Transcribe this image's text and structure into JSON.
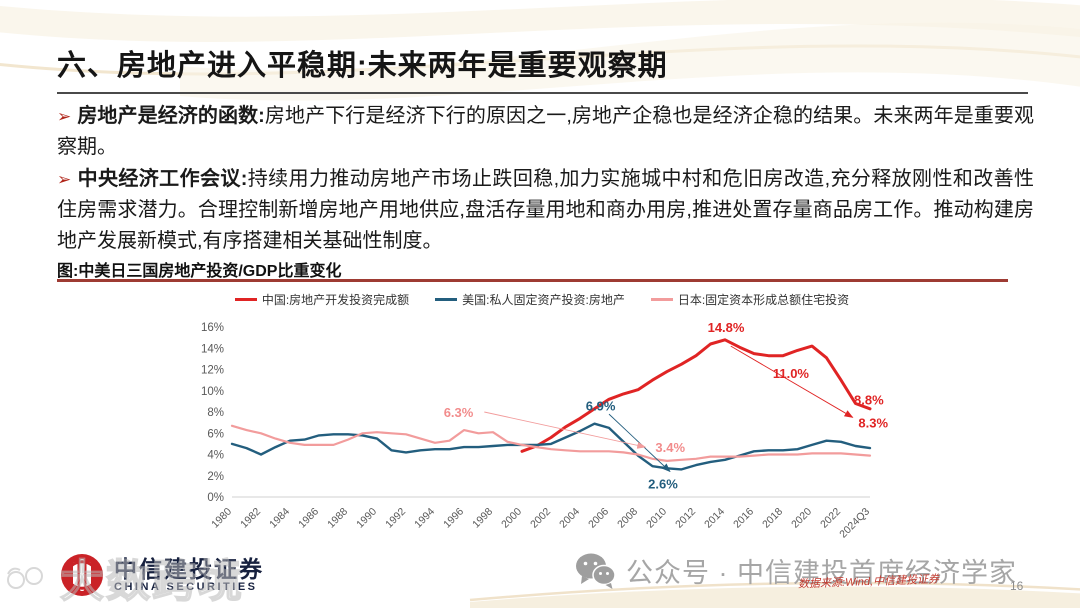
{
  "slide": {
    "title": "六、房地产进入平稳期:未来两年是重要观察期"
  },
  "bullets": [
    {
      "marker": "➢",
      "lead": "房地产是经济的函数:",
      "text": "房地产下行是经济下行的原因之一,房地产企稳也是经济企稳的结果。未来两年是重要观察期。"
    },
    {
      "marker": "➢",
      "lead": "中央经济工作会议:",
      "text": "持续用力推动房地产市场止跌回稳,加力实施城中村和危旧房改造,充分释放刚性和改善性住房需求潜力。合理控制新增房地产用地供应,盘活存量用地和商办用房,推进处置存量商品房工作。推动构建房地产发展新模式,有序搭建相关基础性制度。"
    }
  ],
  "figure": {
    "caption": "图:中美日三国房地产投资/GDP比重变化"
  },
  "chart_data": {
    "type": "line",
    "title": "中美日三国房地产投资/GDP比重变化",
    "grid": false,
    "legend_position": "top",
    "ylim": [
      0,
      16
    ],
    "y_tick_labels": [
      "0%",
      "2%",
      "4%",
      "6%",
      "8%",
      "10%",
      "12%",
      "14%",
      "16%"
    ],
    "x_tick_labels": [
      "1980",
      "1982",
      "1984",
      "1986",
      "1988",
      "1990",
      "1992",
      "1994",
      "1996",
      "1998",
      "2000",
      "2002",
      "2004",
      "2006",
      "2008",
      "2010",
      "2012",
      "2014",
      "2016",
      "2018",
      "2020",
      "2022",
      "2024Q3"
    ],
    "axis_color": "#d9d9d9",
    "tick_text_color": "#595959",
    "series": [
      {
        "name": "中国:房地产开发投资完成额",
        "color": "#e02424",
        "width": 3,
        "points": [
          [
            2000,
            4.3
          ],
          [
            2001,
            4.8
          ],
          [
            2002,
            5.6
          ],
          [
            2003,
            6.6
          ],
          [
            2004,
            7.4
          ],
          [
            2005,
            8.3
          ],
          [
            2006,
            9.2
          ],
          [
            2007,
            9.7
          ],
          [
            2008,
            10.1
          ],
          [
            2009,
            11.0
          ],
          [
            2010,
            11.8
          ],
          [
            2011,
            12.5
          ],
          [
            2012,
            13.3
          ],
          [
            2013,
            14.4
          ],
          [
            2014,
            14.8
          ],
          [
            2015,
            14.1
          ],
          [
            2016,
            13.5
          ],
          [
            2017,
            13.3
          ],
          [
            2018,
            13.3
          ],
          [
            2019,
            13.8
          ],
          [
            2020,
            14.2
          ],
          [
            2021,
            13.1
          ],
          [
            2022,
            11.0
          ],
          [
            2023,
            8.8
          ],
          [
            2024,
            8.3
          ]
        ]
      },
      {
        "name": "美国:私人固定资产投资:房地产",
        "color": "#235e7e",
        "width": 2.4,
        "points": [
          [
            1980,
            5.0
          ],
          [
            1981,
            4.6
          ],
          [
            1982,
            4.0
          ],
          [
            1983,
            4.7
          ],
          [
            1984,
            5.3
          ],
          [
            1985,
            5.4
          ],
          [
            1986,
            5.8
          ],
          [
            1987,
            5.9
          ],
          [
            1988,
            5.9
          ],
          [
            1989,
            5.8
          ],
          [
            1990,
            5.5
          ],
          [
            1991,
            4.4
          ],
          [
            1992,
            4.2
          ],
          [
            1993,
            4.4
          ],
          [
            1994,
            4.5
          ],
          [
            1995,
            4.5
          ],
          [
            1996,
            4.7
          ],
          [
            1997,
            4.7
          ],
          [
            1998,
            4.8
          ],
          [
            1999,
            4.9
          ],
          [
            2000,
            4.9
          ],
          [
            2001,
            4.9
          ],
          [
            2002,
            5.0
          ],
          [
            2003,
            5.6
          ],
          [
            2004,
            6.2
          ],
          [
            2005,
            6.9
          ],
          [
            2006,
            6.5
          ],
          [
            2007,
            5.2
          ],
          [
            2008,
            3.9
          ],
          [
            2009,
            2.9
          ],
          [
            2010,
            2.7
          ],
          [
            2011,
            2.6
          ],
          [
            2012,
            3.0
          ],
          [
            2013,
            3.3
          ],
          [
            2014,
            3.5
          ],
          [
            2015,
            3.9
          ],
          [
            2016,
            4.3
          ],
          [
            2017,
            4.4
          ],
          [
            2018,
            4.4
          ],
          [
            2019,
            4.5
          ],
          [
            2020,
            4.9
          ],
          [
            2021,
            5.3
          ],
          [
            2022,
            5.2
          ],
          [
            2023,
            4.8
          ],
          [
            2024,
            4.6
          ]
        ]
      },
      {
        "name": "日本:固定资本形成总额住宅投资",
        "color": "#f29c9c",
        "width": 2.2,
        "points": [
          [
            1980,
            6.7
          ],
          [
            1981,
            6.3
          ],
          [
            1982,
            6.0
          ],
          [
            1983,
            5.5
          ],
          [
            1984,
            5.1
          ],
          [
            1985,
            4.9
          ],
          [
            1986,
            4.9
          ],
          [
            1987,
            4.9
          ],
          [
            1988,
            5.4
          ],
          [
            1989,
            6.0
          ],
          [
            1990,
            6.1
          ],
          [
            1991,
            6.0
          ],
          [
            1992,
            5.9
          ],
          [
            1993,
            5.5
          ],
          [
            1994,
            5.1
          ],
          [
            1995,
            5.3
          ],
          [
            1996,
            6.3
          ],
          [
            1997,
            6.0
          ],
          [
            1998,
            6.1
          ],
          [
            1999,
            5.2
          ],
          [
            2000,
            4.9
          ],
          [
            2001,
            4.7
          ],
          [
            2002,
            4.5
          ],
          [
            2003,
            4.4
          ],
          [
            2004,
            4.3
          ],
          [
            2005,
            4.3
          ],
          [
            2006,
            4.3
          ],
          [
            2007,
            4.2
          ],
          [
            2008,
            4.0
          ],
          [
            2009,
            3.6
          ],
          [
            2010,
            3.4
          ],
          [
            2011,
            3.5
          ],
          [
            2012,
            3.6
          ],
          [
            2013,
            3.8
          ],
          [
            2014,
            3.8
          ],
          [
            2015,
            3.8
          ],
          [
            2016,
            3.9
          ],
          [
            2017,
            4.0
          ],
          [
            2018,
            4.0
          ],
          [
            2019,
            4.0
          ],
          [
            2020,
            4.1
          ],
          [
            2021,
            4.1
          ],
          [
            2022,
            4.1
          ],
          [
            2023,
            4.0
          ],
          [
            2024,
            3.9
          ]
        ]
      }
    ],
    "annotations": [
      {
        "text": "14.8%",
        "x": 2012.8,
        "y": 15.9,
        "color": "#e02424"
      },
      {
        "text": "11.0%",
        "x": 2017.3,
        "y": 11.6,
        "color": "#e02424"
      },
      {
        "text": "8.8%",
        "x": 2022.9,
        "y": 9.1,
        "color": "#e02424"
      },
      {
        "text": "8.3%",
        "x": 2023.2,
        "y": 6.9,
        "color": "#e02424"
      },
      {
        "text": "6.9%",
        "x": 2004.4,
        "y": 8.5,
        "color": "#235e7e"
      },
      {
        "text": "2.6%",
        "x": 2008.7,
        "y": 1.2,
        "color": "#235e7e"
      },
      {
        "text": "6.3%",
        "x": 1994.6,
        "y": 7.9,
        "color": "#f28c8c"
      },
      {
        "text": "3.4%",
        "x": 2009.2,
        "y": 4.6,
        "color": "#f28c8c"
      }
    ],
    "leader_arrows": [
      {
        "color": "#e02424",
        "from": [
          2014.4,
          14.2
        ],
        "to": [
          2022.8,
          7.5
        ]
      },
      {
        "color": "#235e7e",
        "from": [
          2006.0,
          7.8
        ],
        "to": [
          2010.2,
          2.4
        ]
      },
      {
        "color": "#f29c9c",
        "from": [
          1997.4,
          8.0
        ],
        "to": [
          2008.5,
          4.7
        ]
      }
    ]
  },
  "footer": {
    "logo_cn": "中信建投证券",
    "logo_en": "CHINA SECURITIES",
    "wechat_text": "公众号 · 中信建投首席经济学家",
    "source_text": "数据来源:Wind,中信建投证券",
    "page": "16"
  },
  "watermark": {
    "text": "大数跨境",
    "badge": "100"
  },
  "colors": {
    "china_red": "#e02424",
    "us_blue": "#235e7e",
    "japan_pink": "#f29c9c",
    "caption_rule": "#9e3b33",
    "logo_red": "#ca2227"
  }
}
